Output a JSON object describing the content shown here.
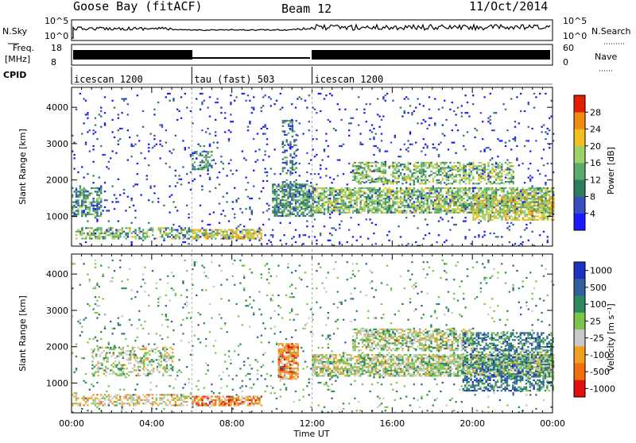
{
  "header": {
    "station": "Goose Bay (fitACF)",
    "beam": "Beam 12",
    "date": "11/Oct/2014"
  },
  "status_panels": {
    "nsky_label": "N.Sky",
    "nsearch_label": "N.Search",
    "freq_label_1": "Freq.",
    "freq_label_2": "[MHz]",
    "nave_label": "Nave",
    "cpid_label": "CPID",
    "noise_left_ticks": [
      "10^5",
      "10^0"
    ],
    "noise_right_ticks": [
      "10^5",
      "10^0"
    ],
    "freq_left_ticks": [
      "18",
      "8"
    ],
    "nave_right_ticks": [
      "60",
      "0"
    ],
    "cpid_segments": [
      {
        "label": "icescan 1200",
        "start_h": 0,
        "end_h": 6
      },
      {
        "label": "tau (fast) 503",
        "start_h": 6,
        "end_h": 12
      },
      {
        "label": "icescan 1200",
        "start_h": 12,
        "end_h": 24
      }
    ]
  },
  "chart_data": [
    {
      "type": "heatmap",
      "name": "power",
      "xlabel": "",
      "ylabel": "Slant Range [km]",
      "xlim": [
        0,
        24
      ],
      "ylim": [
        180,
        4550
      ],
      "yticks": [
        "1000",
        "2000",
        "3000",
        "4000"
      ],
      "colorbar_label": "Power [dB]",
      "colorbar_ticks": [
        "4",
        "8",
        "12",
        "16",
        "20",
        "24",
        "28"
      ],
      "colorbar_colors": [
        "#1a1aff",
        "#3a4fc0",
        "#2e7d5e",
        "#5aaa6a",
        "#9fd16b",
        "#f0c020",
        "#f08a10",
        "#e02000"
      ],
      "features": [
        {
          "t0": 0.0,
          "t1": 1.5,
          "r0": 1000,
          "r1": 1800,
          "level": 3,
          "density": 0.55
        },
        {
          "t0": 0.2,
          "t1": 6.0,
          "r0": 400,
          "r1": 700,
          "level": 4,
          "density": 0.5
        },
        {
          "t0": 6.0,
          "t1": 9.5,
          "r0": 380,
          "r1": 650,
          "level": 5,
          "density": 0.75
        },
        {
          "t0": 6.0,
          "t1": 7.0,
          "r0": 2300,
          "r1": 2800,
          "level": 3,
          "density": 0.5
        },
        {
          "t0": 10.0,
          "t1": 12.0,
          "r0": 1000,
          "r1": 1900,
          "level": 3,
          "density": 0.7
        },
        {
          "t0": 10.5,
          "t1": 11.2,
          "r0": 1800,
          "r1": 3700,
          "level": 2,
          "density": 0.3
        },
        {
          "t0": 12.0,
          "t1": 24.0,
          "r0": 1100,
          "r1": 1800,
          "level": 4,
          "density": 0.7
        },
        {
          "t0": 14.0,
          "t1": 22.0,
          "r0": 1900,
          "r1": 2500,
          "level": 4,
          "density": 0.55
        },
        {
          "t0": 20.0,
          "t1": 24.0,
          "r0": 900,
          "r1": 1600,
          "level": 5,
          "density": 0.6
        },
        {
          "t0": 0.0,
          "t1": 24.0,
          "r0": 200,
          "r1": 4400,
          "level": 1,
          "density": 0.05
        }
      ]
    },
    {
      "type": "heatmap",
      "name": "velocity",
      "xlabel": "Time UT",
      "ylabel": "Slant Range [km]",
      "xlim": [
        0,
        24
      ],
      "ylim": [
        180,
        4550
      ],
      "xticks": [
        "00:00",
        "04:00",
        "08:00",
        "12:00",
        "16:00",
        "20:00",
        "00:00"
      ],
      "yticks": [
        "1000",
        "2000",
        "3000",
        "4000"
      ],
      "colorbar_label": "Velocity [m s⁻¹]",
      "colorbar_ticks": [
        "1000",
        "500",
        "100",
        "25",
        "-25",
        "-100",
        "-500",
        "-1000"
      ],
      "colorbar_colors": [
        "#2030c0",
        "#3060a0",
        "#2e8a5e",
        "#7cc44a",
        "#c8c8c8",
        "#f0a020",
        "#f07010",
        "#e01010"
      ],
      "features": [
        {
          "t0": 0.0,
          "t1": 6.0,
          "r0": 400,
          "r1": 700,
          "level": 5,
          "density": 0.5
        },
        {
          "t0": 6.0,
          "t1": 9.5,
          "r0": 380,
          "r1": 650,
          "level": 6,
          "density": 0.75
        },
        {
          "t0": 1.0,
          "t1": 5.0,
          "r0": 1200,
          "r1": 2000,
          "level": 4,
          "density": 0.35
        },
        {
          "t0": 10.3,
          "t1": 11.3,
          "r0": 1100,
          "r1": 2100,
          "level": 6,
          "density": 0.75
        },
        {
          "t0": 12.0,
          "t1": 24.0,
          "r0": 1200,
          "r1": 1800,
          "level": 4,
          "density": 0.75
        },
        {
          "t0": 14.0,
          "t1": 20.0,
          "r0": 1900,
          "r1": 2500,
          "level": 4,
          "density": 0.6
        },
        {
          "t0": 19.5,
          "t1": 24.0,
          "r0": 800,
          "r1": 2400,
          "level": 2,
          "density": 0.5
        },
        {
          "t0": 0.0,
          "t1": 24.0,
          "r0": 200,
          "r1": 4400,
          "level": 3,
          "density": 0.05
        }
      ]
    }
  ]
}
